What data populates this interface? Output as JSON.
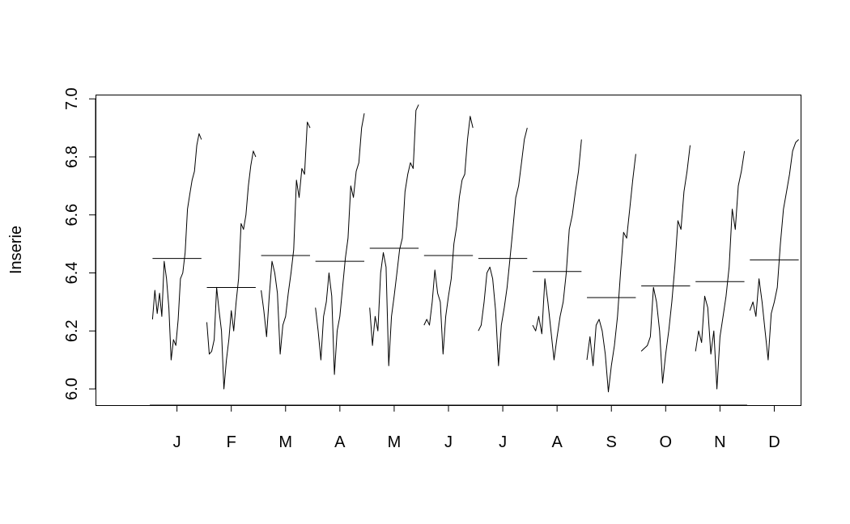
{
  "chart_data": {
    "type": "line",
    "title": "",
    "xlabel": "",
    "ylabel": "Inserie",
    "ylim": [
      5.95,
      7.02
    ],
    "yticks": [
      6.0,
      6.2,
      6.4,
      6.6,
      6.8,
      7.0
    ],
    "ytick_labels": [
      "6.0",
      "6.2",
      "6.4",
      "6.6",
      "6.8",
      "7.0"
    ],
    "categories": [
      "J",
      "F",
      "M",
      "A",
      "M",
      "J",
      "J",
      "A",
      "S",
      "O",
      "N",
      "D"
    ],
    "xlim": [
      0.5,
      13.5
    ],
    "series_means": [
      6.45,
      6.35,
      6.46,
      6.44,
      6.485,
      6.46,
      6.45,
      6.405,
      6.315,
      6.355,
      6.37,
      6.445
    ],
    "subseries": [
      [
        6.24,
        6.34,
        6.26,
        6.33,
        6.25,
        6.44,
        6.38,
        6.28,
        6.1,
        6.17,
        6.15,
        6.24,
        6.38,
        6.4,
        6.47,
        6.62,
        6.67,
        6.72,
        6.75,
        6.84,
        6.88,
        6.86
      ],
      [
        6.23,
        6.12,
        6.13,
        6.17,
        6.35,
        6.27,
        6.2,
        6.0,
        6.1,
        6.17,
        6.27,
        6.2,
        6.3,
        6.38,
        6.57,
        6.55,
        6.6,
        6.7,
        6.77,
        6.82,
        6.8
      ],
      [
        6.34,
        6.27,
        6.18,
        6.32,
        6.44,
        6.4,
        6.33,
        6.12,
        6.22,
        6.25,
        6.33,
        6.4,
        6.48,
        6.72,
        6.66,
        6.76,
        6.74,
        6.92,
        6.9
      ],
      [
        6.28,
        6.2,
        6.1,
        6.25,
        6.3,
        6.4,
        6.32,
        6.05,
        6.2,
        6.25,
        6.35,
        6.45,
        6.52,
        6.7,
        6.66,
        6.75,
        6.78,
        6.9,
        6.95
      ],
      [
        6.28,
        6.15,
        6.25,
        6.2,
        6.4,
        6.47,
        6.42,
        6.08,
        6.25,
        6.32,
        6.4,
        6.48,
        6.52,
        6.68,
        6.74,
        6.78,
        6.76,
        6.96,
        6.98
      ],
      [
        6.22,
        6.24,
        6.22,
        6.3,
        6.41,
        6.33,
        6.3,
        6.12,
        6.25,
        6.32,
        6.38,
        6.5,
        6.56,
        6.66,
        6.72,
        6.74,
        6.86,
        6.94,
        6.9
      ],
      [
        6.2,
        6.22,
        6.3,
        6.4,
        6.42,
        6.38,
        6.27,
        6.08,
        6.22,
        6.28,
        6.35,
        6.45,
        6.55,
        6.66,
        6.7,
        6.78,
        6.86,
        6.9
      ],
      [
        6.22,
        6.2,
        6.25,
        6.19,
        6.38,
        6.3,
        6.2,
        6.1,
        6.18,
        6.25,
        6.3,
        6.4,
        6.55,
        6.6,
        6.68,
        6.75,
        6.86
      ],
      [
        6.1,
        6.18,
        6.08,
        6.22,
        6.24,
        6.2,
        6.12,
        5.99,
        6.08,
        6.15,
        6.25,
        6.4,
        6.54,
        6.52,
        6.62,
        6.72,
        6.81
      ],
      [
        6.13,
        6.14,
        6.15,
        6.18,
        6.35,
        6.3,
        6.2,
        6.02,
        6.12,
        6.2,
        6.3,
        6.42,
        6.58,
        6.55,
        6.68,
        6.75,
        6.84
      ],
      [
        6.13,
        6.2,
        6.16,
        6.32,
        6.28,
        6.12,
        6.2,
        6.0,
        6.18,
        6.25,
        6.32,
        6.42,
        6.62,
        6.55,
        6.7,
        6.75,
        6.82
      ],
      [
        6.27,
        6.3,
        6.25,
        6.38,
        6.3,
        6.2,
        6.1,
        6.26,
        6.3,
        6.35,
        6.5,
        6.62,
        6.68,
        6.74,
        6.82,
        6.85,
        6.86
      ]
    ],
    "grid": false,
    "legend": "none"
  }
}
